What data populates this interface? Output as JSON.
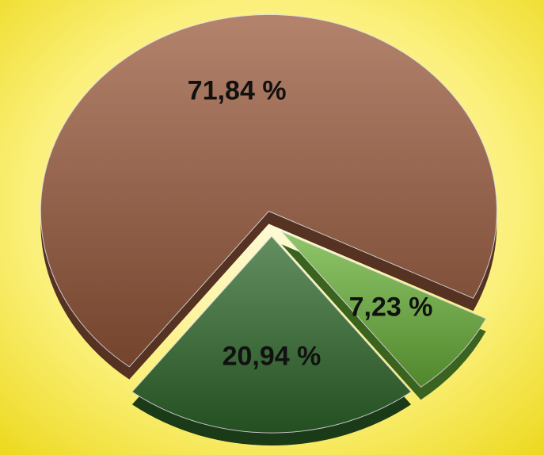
{
  "chart_data": {
    "type": "pie",
    "values": [
      71.84,
      7.23,
      20.94
    ],
    "value_labels": [
      "71,84 %",
      "7,23 %",
      "20,94 %"
    ],
    "colors": [
      "#9a5a3c",
      "#6cb43a",
      "#2f6a2c"
    ]
  }
}
